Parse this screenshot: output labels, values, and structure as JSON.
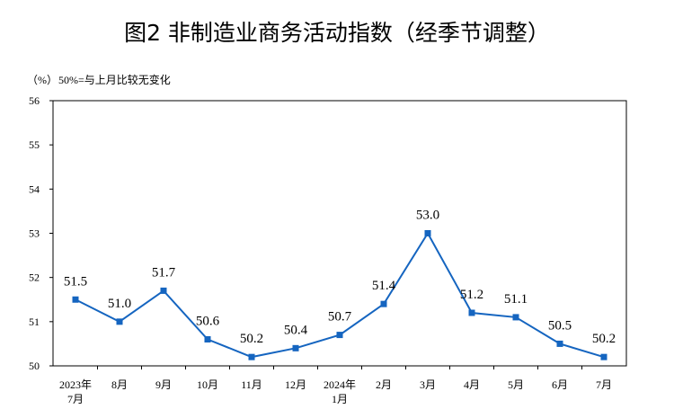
{
  "chart_data": {
    "type": "line",
    "title": "图2  非制造业商务活动指数（经季节调整）",
    "unit_label": "（%）",
    "note": "50%=与上月比较无变化",
    "ylim": [
      50,
      56
    ],
    "yticks": [
      50,
      51,
      52,
      53,
      54,
      55,
      56
    ],
    "categories": [
      [
        "2023年",
        "7月"
      ],
      [
        "8月"
      ],
      [
        "9月"
      ],
      [
        "10月"
      ],
      [
        "11月"
      ],
      [
        "12月"
      ],
      [
        "2024年",
        "1月"
      ],
      [
        "2月"
      ],
      [
        "3月"
      ],
      [
        "4月"
      ],
      [
        "5月"
      ],
      [
        "6月"
      ],
      [
        "7月"
      ]
    ],
    "series": [
      {
        "values": [
          51.5,
          51.0,
          51.7,
          50.6,
          50.2,
          50.4,
          50.7,
          51.4,
          53.0,
          51.2,
          51.1,
          50.5,
          50.2
        ],
        "data_labels": [
          "51.5",
          "51.0",
          "51.7",
          "50.6",
          "50.2",
          "50.4",
          "50.7",
          "51.4",
          "53.0",
          "51.2",
          "51.1",
          "50.5",
          "50.2"
        ],
        "color": "#1565c0"
      }
    ],
    "grid": false,
    "legend": "none"
  }
}
